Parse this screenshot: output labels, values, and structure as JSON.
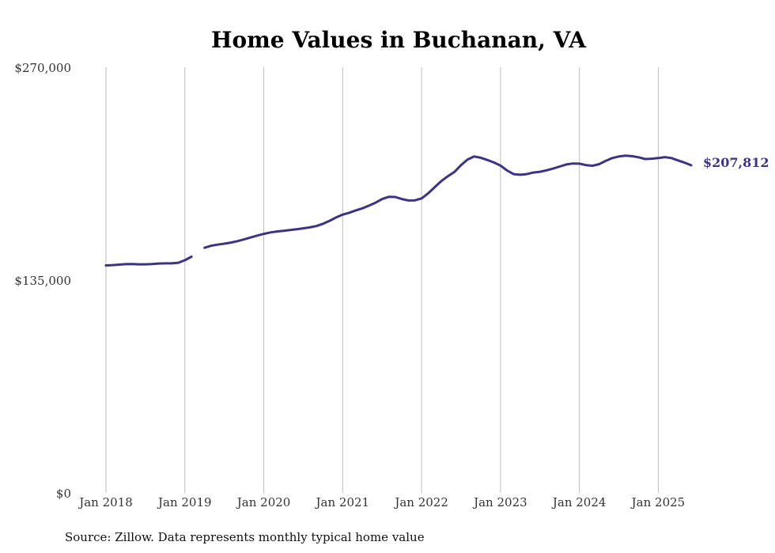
{
  "chart_data": {
    "type": "line",
    "title": "Home Values in Buchanan, VA",
    "xlabel": "",
    "ylabel": "",
    "ylim": [
      0,
      270000
    ],
    "y_ticks": [
      {
        "value": 0,
        "label": "$0"
      },
      {
        "value": 135000,
        "label": "$135,000"
      },
      {
        "value": 270000,
        "label": "$270,000"
      }
    ],
    "x_range": [
      "2018-01",
      "2025-06"
    ],
    "x_ticks": [
      {
        "date": "2018-01",
        "label": "Jan 2018"
      },
      {
        "date": "2019-01",
        "label": "Jan 2019"
      },
      {
        "date": "2020-01",
        "label": "Jan 2020"
      },
      {
        "date": "2021-01",
        "label": "Jan 2021"
      },
      {
        "date": "2022-01",
        "label": "Jan 2022"
      },
      {
        "date": "2023-01",
        "label": "Jan 2023"
      },
      {
        "date": "2024-01",
        "label": "Jan 2024"
      },
      {
        "date": "2025-01",
        "label": "Jan 2025"
      }
    ],
    "grid": "vertical",
    "line_color": "#3b3486",
    "end_label": "$207,812",
    "series": [
      {
        "points": [
          [
            "2018-01",
            144300
          ],
          [
            "2018-02",
            144500
          ],
          [
            "2018-03",
            144800
          ],
          [
            "2018-04",
            145100
          ],
          [
            "2018-05",
            145200
          ],
          [
            "2018-06",
            145000
          ],
          [
            "2018-07",
            145000
          ],
          [
            "2018-08",
            145200
          ],
          [
            "2018-09",
            145500
          ],
          [
            "2018-10",
            145600
          ],
          [
            "2018-11",
            145600
          ],
          [
            "2018-12",
            146000
          ],
          [
            "2019-01",
            147600
          ],
          [
            "2019-02",
            149800
          ],
          [
            "2019-03",
            null
          ],
          [
            "2019-04",
            155500
          ],
          [
            "2019-05",
            156800
          ],
          [
            "2019-06",
            157500
          ],
          [
            "2019-07",
            158100
          ],
          [
            "2019-08",
            158800
          ],
          [
            "2019-09",
            159700
          ],
          [
            "2019-10",
            160800
          ],
          [
            "2019-11",
            162000
          ],
          [
            "2019-12",
            163200
          ],
          [
            "2020-01",
            164300
          ],
          [
            "2020-02",
            165200
          ],
          [
            "2020-03",
            165800
          ],
          [
            "2020-04",
            166200
          ],
          [
            "2020-05",
            166700
          ],
          [
            "2020-06",
            167200
          ],
          [
            "2020-07",
            167800
          ],
          [
            "2020-08",
            168400
          ],
          [
            "2020-09",
            169300
          ],
          [
            "2020-10",
            170700
          ],
          [
            "2020-11",
            172600
          ],
          [
            "2020-12",
            174700
          ],
          [
            "2021-01",
            176500
          ],
          [
            "2021-02",
            177700
          ],
          [
            "2021-03",
            179200
          ],
          [
            "2021-04",
            180500
          ],
          [
            "2021-05",
            182200
          ],
          [
            "2021-06",
            184100
          ],
          [
            "2021-07",
            186400
          ],
          [
            "2021-08",
            187800
          ],
          [
            "2021-09",
            187700
          ],
          [
            "2021-10",
            186400
          ],
          [
            "2021-11",
            185500
          ],
          [
            "2021-12",
            185600
          ],
          [
            "2022-01",
            186800
          ],
          [
            "2022-02",
            190000
          ],
          [
            "2022-03",
            193900
          ],
          [
            "2022-04",
            197800
          ],
          [
            "2022-05",
            200900
          ],
          [
            "2022-06",
            203600
          ],
          [
            "2022-07",
            207900
          ],
          [
            "2022-08",
            211500
          ],
          [
            "2022-09",
            213400
          ],
          [
            "2022-10",
            212600
          ],
          [
            "2022-11",
            211200
          ],
          [
            "2022-12",
            209600
          ],
          [
            "2023-01",
            207600
          ],
          [
            "2023-02",
            204500
          ],
          [
            "2023-03",
            202200
          ],
          [
            "2023-04",
            201800
          ],
          [
            "2023-05",
            202200
          ],
          [
            "2023-06",
            203200
          ],
          [
            "2023-07",
            203700
          ],
          [
            "2023-08",
            204600
          ],
          [
            "2023-09",
            205700
          ],
          [
            "2023-10",
            207000
          ],
          [
            "2023-11",
            208300
          ],
          [
            "2023-12",
            208900
          ],
          [
            "2024-01",
            208800
          ],
          [
            "2024-02",
            207900
          ],
          [
            "2024-03",
            207500
          ],
          [
            "2024-04",
            208500
          ],
          [
            "2024-05",
            210600
          ],
          [
            "2024-06",
            212400
          ],
          [
            "2024-07",
            213400
          ],
          [
            "2024-08",
            213900
          ],
          [
            "2024-09",
            213600
          ],
          [
            "2024-10",
            212900
          ],
          [
            "2024-11",
            211800
          ],
          [
            "2024-12",
            212000
          ],
          [
            "2025-01",
            212400
          ],
          [
            "2025-02",
            213000
          ],
          [
            "2025-03",
            212400
          ],
          [
            "2025-04",
            210900
          ],
          [
            "2025-05",
            209500
          ],
          [
            "2025-06",
            207812
          ]
        ]
      }
    ]
  },
  "footer": {
    "source": "Source: Zillow. Data represents monthly typical home value"
  }
}
